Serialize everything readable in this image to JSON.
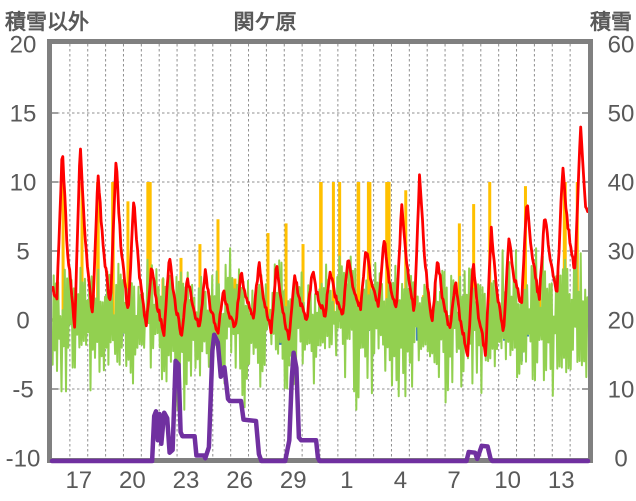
{
  "header": {
    "left_axis_title": "積雪以外",
    "station_title": "関ケ原",
    "right_axis_title": "積雪"
  },
  "colors": {
    "frame": "#808080",
    "grid": "#8f8f8f",
    "text": "#595959",
    "temperature": "#FF0000",
    "sunshine": "#FFC000",
    "oscillation": "#92D050",
    "precipitation": "#2E75B6",
    "snow_depth": "#7030A0",
    "background": "#ffffff"
  },
  "chart_data": {
    "type": "line",
    "title": "関ケ原",
    "left_axis_title": "積雪以外",
    "right_axis_title": "積雪",
    "left_axis": {
      "ticks": [
        20,
        15,
        10,
        5,
        0,
        -5,
        -10
      ],
      "range": [
        -10,
        20
      ]
    },
    "right_axis": {
      "ticks": [
        60,
        50,
        40,
        30,
        20,
        10,
        0
      ],
      "range": [
        0,
        60
      ]
    },
    "x_axis": {
      "tick_labels": [
        "17",
        "20",
        "23",
        "26",
        "29",
        "1",
        "4",
        "7",
        "10",
        "13"
      ],
      "tick_positions_days": [
        1.5,
        4.5,
        7.5,
        10.5,
        13.5,
        16.5,
        19.5,
        22.5,
        25.5,
        28.5
      ],
      "span_days": 30,
      "grid_every_days": 1
    },
    "series": [
      {
        "name": "temperature-red-line",
        "type": "line",
        "axis": "left",
        "color": "#FF0000",
        "start_value": 2.3,
        "end_value": 7.6,
        "daily_max_min": [
          [
            12.5,
            1.5
          ],
          [
            12.8,
            -0.5
          ],
          [
            10.7,
            0.2
          ],
          [
            11.7,
            1.0
          ],
          [
            8.9,
            0.3
          ],
          [
            4.1,
            -0.5
          ],
          [
            4.7,
            -1.0
          ],
          [
            3.1,
            -1.2
          ],
          [
            3.5,
            -0.6
          ],
          [
            2.2,
            -1.0
          ],
          [
            3.6,
            -0.6
          ],
          [
            4.2,
            0.0
          ],
          [
            4.1,
            -0.8
          ],
          [
            3.3,
            -1.5
          ],
          [
            3.6,
            0.0
          ],
          [
            3.4,
            0.3
          ],
          [
            4.5,
            0.4
          ],
          [
            5.2,
            0.8
          ],
          [
            6.0,
            1.0
          ],
          [
            8.5,
            0.6
          ],
          [
            10.6,
            0.5
          ],
          [
            4.6,
            -0.5
          ],
          [
            3.0,
            -0.8
          ],
          [
            4.2,
            -2.5
          ],
          [
            6.7,
            -2.5
          ],
          [
            6.0,
            -1.0
          ],
          [
            8.8,
            1.0
          ],
          [
            7.7,
            1.5
          ],
          [
            11.1,
            2.0
          ],
          [
            14.0,
            3.5
          ]
        ]
      },
      {
        "name": "sunshine-orange-bars",
        "type": "bar",
        "axis": "left",
        "color": "#FFC000",
        "bars_t_height_widthdays": [
          [
            0.62,
            10,
            0.16
          ],
          [
            1.68,
            10,
            0.16
          ],
          [
            2.57,
            10,
            0.2
          ],
          [
            3.41,
            10,
            0.2
          ],
          [
            4.25,
            8.6,
            0.1
          ],
          [
            5.43,
            10,
            0.3
          ],
          [
            6.21,
            3,
            0.08
          ],
          [
            7.22,
            4.5,
            0.08
          ],
          [
            8.28,
            5.5,
            0.08
          ],
          [
            9.29,
            7.3,
            0.1
          ],
          [
            10.24,
            3,
            0.08
          ],
          [
            12.09,
            6.3,
            0.1
          ],
          [
            13.1,
            7,
            0.1
          ],
          [
            14.05,
            5.5,
            0.1
          ],
          [
            15.05,
            10,
            0.2
          ],
          [
            15.75,
            10,
            0.14
          ],
          [
            16.1,
            10,
            0.12
          ],
          [
            17.15,
            10,
            0.2
          ],
          [
            17.75,
            10,
            0.25
          ],
          [
            18.8,
            10,
            0.3
          ],
          [
            19.8,
            9.4,
            0.14
          ],
          [
            20.8,
            1.8,
            0.08
          ],
          [
            22.8,
            7,
            0.1
          ],
          [
            23.6,
            8.4,
            0.1
          ],
          [
            24.5,
            10,
            0.12
          ],
          [
            26.5,
            9.7,
            0.12
          ],
          [
            27.3,
            2.5,
            0.08
          ],
          [
            28.7,
            10,
            0.22
          ],
          [
            29.4,
            10,
            0.12
          ]
        ]
      },
      {
        "name": "green-oscillation-line",
        "type": "line",
        "axis": "left",
        "color": "#92D050",
        "daily_hi_lo": [
          [
            4.2,
            -4.5
          ],
          [
            3.8,
            -3.0
          ],
          [
            4.0,
            -5.2
          ],
          [
            4.5,
            -3.5
          ],
          [
            3.0,
            -4.0
          ],
          [
            4.8,
            -3.0
          ],
          [
            3.5,
            -4.5
          ],
          [
            3.0,
            -6.3
          ],
          [
            5.2,
            -3.5
          ],
          [
            4.8,
            -4.0
          ],
          [
            3.2,
            -5.5
          ],
          [
            3.8,
            -4.2
          ],
          [
            4.5,
            -3.0
          ],
          [
            3.0,
            -5.0
          ],
          [
            2.8,
            -4.0
          ],
          [
            3.5,
            -3.5
          ],
          [
            4.0,
            -4.5
          ],
          [
            3.0,
            -5.8
          ],
          [
            4.2,
            -3.2
          ],
          [
            4.6,
            -4.8
          ],
          [
            3.4,
            -4.2
          ],
          [
            4.4,
            -3.6
          ],
          [
            3.2,
            -5.2
          ],
          [
            4.0,
            -4.0
          ],
          [
            3.6,
            -4.6
          ],
          [
            4.4,
            -3.4
          ],
          [
            3.4,
            -4.4
          ],
          [
            4.6,
            -3.8
          ],
          [
            3.8,
            -5.6
          ],
          [
            4.2,
            -3.6
          ]
        ]
      },
      {
        "name": "precipitation-blue-bars",
        "type": "bar",
        "axis": "left",
        "color": "#2E75B6",
        "bars_t_depth": [
          [
            2.13,
            -0.8
          ],
          [
            3.92,
            -1.0
          ],
          [
            4.48,
            -1.3
          ],
          [
            6.16,
            -1.7
          ],
          [
            6.38,
            -2.2
          ],
          [
            6.6,
            -1.5
          ],
          [
            7.5,
            -1.2
          ],
          [
            8.17,
            -0.9
          ],
          [
            9.01,
            -2.0
          ],
          [
            9.51,
            -1.0
          ],
          [
            12.76,
            -1.8
          ],
          [
            13.43,
            -1.2
          ],
          [
            14.55,
            -0.6
          ],
          [
            16.96,
            -1.3
          ],
          [
            17.69,
            -0.8
          ],
          [
            20.48,
            -1.5
          ],
          [
            22.16,
            -1.1
          ],
          [
            25.35,
            -1.5
          ],
          [
            26.25,
            -3.0
          ],
          [
            26.59,
            -1.2
          ]
        ]
      },
      {
        "name": "snow-depth-purple-line",
        "type": "line",
        "axis": "right",
        "color": "#7030A0",
        "points_t_cm": [
          [
            0,
            0
          ],
          [
            5.6,
            0
          ],
          [
            5.72,
            6.5
          ],
          [
            5.82,
            7.2
          ],
          [
            5.92,
            3.0
          ],
          [
            6.02,
            6.8
          ],
          [
            6.12,
            2.5
          ],
          [
            6.28,
            7.0
          ],
          [
            6.45,
            6.2
          ],
          [
            6.58,
            1.2
          ],
          [
            6.75,
            1.6
          ],
          [
            6.92,
            14.5
          ],
          [
            7.08,
            14.0
          ],
          [
            7.2,
            4.2
          ],
          [
            7.3,
            3.6
          ],
          [
            7.98,
            3.6
          ],
          [
            8.08,
            0.8
          ],
          [
            8.5,
            0.8
          ],
          [
            8.58,
            0.4
          ],
          [
            8.78,
            2.0
          ],
          [
            8.84,
            6.0
          ],
          [
            8.98,
            16.0
          ],
          [
            9.08,
            18.3
          ],
          [
            9.28,
            17.2
          ],
          [
            9.45,
            12.2
          ],
          [
            9.65,
            13.6
          ],
          [
            9.85,
            9.0
          ],
          [
            9.95,
            8.7
          ],
          [
            10.58,
            8.7
          ],
          [
            10.72,
            6.0
          ],
          [
            11.42,
            5.8
          ],
          [
            11.58,
            1.0
          ],
          [
            11.72,
            0
          ],
          [
            13.05,
            0
          ],
          [
            13.28,
            3.0
          ],
          [
            13.42,
            12.0
          ],
          [
            13.52,
            15.7
          ],
          [
            13.68,
            13.5
          ],
          [
            13.82,
            3.4
          ],
          [
            13.95,
            3.0
          ],
          [
            14.78,
            3.0
          ],
          [
            14.88,
            0.5
          ],
          [
            14.98,
            0
          ],
          [
            23.2,
            0
          ],
          [
            23.32,
            1.3
          ],
          [
            23.68,
            1.2
          ],
          [
            23.8,
            0.3
          ],
          [
            24.05,
            2.2
          ],
          [
            24.38,
            2.1
          ],
          [
            24.55,
            0.3
          ],
          [
            24.65,
            0
          ],
          [
            30,
            0
          ]
        ]
      }
    ]
  }
}
